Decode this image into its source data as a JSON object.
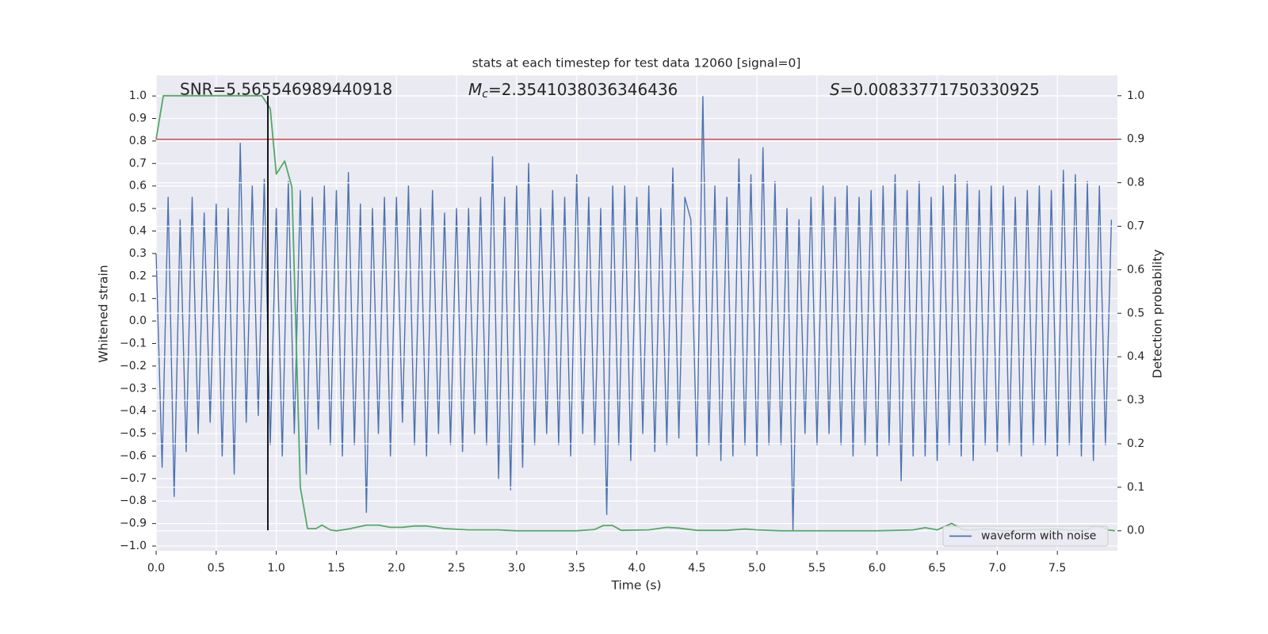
{
  "chart_data": {
    "type": "line",
    "title": "stats at each timestep for test data 12060 [signal=0]",
    "xlabel": "Time (s)",
    "ylabel": "Whitened strain",
    "y2label": "Detection probability",
    "annotations": {
      "snr": "SNR=5.565546989440918",
      "mc_symbol": "M",
      "mc_subscript": "c",
      "mc_value": "=2.3541038036346436",
      "s_symbol": "S",
      "s_value": "=0.00833771750330925"
    },
    "xlim": [
      0,
      8.0
    ],
    "ylim": [
      -1.021,
      1.092
    ],
    "y2lim": [
      -0.046,
      1.047
    ],
    "grid": true,
    "background": "#eaeaf2",
    "legend": "lower right",
    "xticks": [
      {
        "value": 0,
        "label": "0.0"
      },
      {
        "value": 0.5,
        "label": "0.5"
      },
      {
        "value": 1,
        "label": "1.0"
      },
      {
        "value": 1.5,
        "label": "1.5"
      },
      {
        "value": 2,
        "label": "2.0"
      },
      {
        "value": 2.5,
        "label": "2.5"
      },
      {
        "value": 3,
        "label": "3.0"
      },
      {
        "value": 3.5,
        "label": "3.5"
      },
      {
        "value": 4,
        "label": "4.0"
      },
      {
        "value": 4.5,
        "label": "4.5"
      },
      {
        "value": 5,
        "label": "5.0"
      },
      {
        "value": 5.5,
        "label": "5.5"
      },
      {
        "value": 6,
        "label": "6.0"
      },
      {
        "value": 6.5,
        "label": "6.5"
      },
      {
        "value": 7,
        "label": "7.0"
      },
      {
        "value": 7.5,
        "label": "7.5"
      }
    ],
    "yticks": [
      {
        "value": 1,
        "label": "1.0"
      },
      {
        "value": 0.9,
        "label": "0.9"
      },
      {
        "value": 0.8,
        "label": "0.8"
      },
      {
        "value": 0.7,
        "label": "0.7"
      },
      {
        "value": 0.6,
        "label": "0.6"
      },
      {
        "value": 0.5,
        "label": "0.5"
      },
      {
        "value": 0.4,
        "label": "0.4"
      },
      {
        "value": 0.3,
        "label": "0.3"
      },
      {
        "value": 0.2,
        "label": "0.2"
      },
      {
        "value": 0.1,
        "label": "0.1"
      },
      {
        "value": 0,
        "label": "0.0"
      },
      {
        "value": -0.1,
        "label": "−0.1"
      },
      {
        "value": -0.2,
        "label": "−0.2"
      },
      {
        "value": -0.3,
        "label": "−0.3"
      },
      {
        "value": -0.4,
        "label": "−0.4"
      },
      {
        "value": -0.5,
        "label": "−0.5"
      },
      {
        "value": -0.6,
        "label": "−0.6"
      },
      {
        "value": -0.7,
        "label": "−0.7"
      },
      {
        "value": -0.8,
        "label": "−0.8"
      },
      {
        "value": -0.9,
        "label": "−0.9"
      },
      {
        "value": -1,
        "label": "−1.0"
      }
    ],
    "y2ticks": [
      {
        "value": 0,
        "label": "0.0"
      },
      {
        "value": 0.1,
        "label": "0.1"
      },
      {
        "value": 0.2,
        "label": "0.2"
      },
      {
        "value": 0.3,
        "label": "0.3"
      },
      {
        "value": 0.4,
        "label": "0.4"
      },
      {
        "value": 0.5,
        "label": "0.5"
      },
      {
        "value": 0.6,
        "label": "0.6"
      },
      {
        "value": 0.7,
        "label": "0.7"
      },
      {
        "value": 0.8,
        "label": "0.8"
      },
      {
        "value": 0.9,
        "label": "0.9"
      },
      {
        "value": 1,
        "label": "1.0"
      }
    ],
    "threshold": {
      "y2": 0.9,
      "color": "#c44e52"
    },
    "vline": {
      "x": 0.93,
      "y_bottom": -0.93,
      "y2_top": 1.0,
      "color": "#000000"
    },
    "series": [
      {
        "name": "waveform with noise",
        "color": "#4c72b0",
        "x": [
          0,
          0.05,
          0.1,
          0.15,
          0.2,
          0.25,
          0.3,
          0.35,
          0.4,
          0.45,
          0.5,
          0.55,
          0.6,
          0.65,
          0.7,
          0.75,
          0.8,
          0.85,
          0.9,
          0.95,
          1,
          1.05,
          1.1,
          1.15,
          1.2,
          1.25,
          1.3,
          1.35,
          1.4,
          1.45,
          1.5,
          1.55,
          1.6,
          1.65,
          1.7,
          1.75,
          1.8,
          1.85,
          1.9,
          1.95,
          2,
          2.05,
          2.1,
          2.15,
          2.2,
          2.25,
          2.3,
          2.35,
          2.4,
          2.45,
          2.5,
          2.55,
          2.6,
          2.65,
          2.7,
          2.75,
          2.8,
          2.85,
          2.9,
          2.95,
          3,
          3.05,
          3.1,
          3.15,
          3.2,
          3.25,
          3.3,
          3.35,
          3.4,
          3.45,
          3.5,
          3.55,
          3.6,
          3.65,
          3.7,
          3.75,
          3.8,
          3.85,
          3.9,
          3.95,
          4,
          4.05,
          4.1,
          4.15,
          4.2,
          4.25,
          4.3,
          4.35,
          4.4,
          4.45,
          4.5,
          4.55,
          4.6,
          4.65,
          4.7,
          4.75,
          4.8,
          4.85,
          4.9,
          4.95,
          5,
          5.05,
          5.1,
          5.15,
          5.2,
          5.25,
          5.3,
          5.35,
          5.4,
          5.45,
          5.5,
          5.55,
          5.6,
          5.65,
          5.7,
          5.75,
          5.8,
          5.85,
          5.9,
          5.95,
          6,
          6.05,
          6.1,
          6.15,
          6.2,
          6.25,
          6.3,
          6.35,
          6.4,
          6.45,
          6.5,
          6.55,
          6.6,
          6.65,
          6.7,
          6.75,
          6.8,
          6.85,
          6.9,
          6.95,
          7,
          7.05,
          7.1,
          7.15,
          7.2,
          7.25,
          7.3,
          7.35,
          7.4,
          7.45,
          7.5,
          7.55,
          7.6,
          7.65,
          7.7,
          7.75,
          7.8,
          7.85,
          7.9,
          7.95
        ],
        "values": [
          0.3,
          -0.65,
          0.55,
          -0.78,
          0.45,
          -0.58,
          0.55,
          -0.5,
          0.48,
          -0.45,
          0.52,
          -0.6,
          0.5,
          -0.68,
          0.79,
          -0.45,
          0.6,
          -0.42,
          0.63,
          -0.55,
          0.5,
          -0.6,
          0.62,
          -0.5,
          0.58,
          -0.68,
          0.55,
          -0.48,
          0.6,
          -0.55,
          0.58,
          -0.6,
          0.66,
          -0.55,
          0.52,
          -0.85,
          0.5,
          -0.5,
          0.55,
          -0.6,
          0.55,
          -0.45,
          0.6,
          -0.55,
          0.5,
          -0.6,
          0.58,
          -0.5,
          0.48,
          -0.55,
          0.5,
          -0.58,
          0.5,
          -0.5,
          0.55,
          -0.55,
          0.73,
          -0.7,
          0.55,
          -0.75,
          0.6,
          -0.65,
          0.7,
          -0.55,
          0.5,
          -0.5,
          0.58,
          -0.55,
          0.55,
          -0.6,
          0.65,
          -0.5,
          0.55,
          -0.55,
          0.5,
          -0.86,
          0.6,
          -0.55,
          0.6,
          -0.62,
          0.55,
          -0.5,
          0.6,
          -0.58,
          0.5,
          -0.55,
          0.68,
          -0.52,
          0.55,
          0.45,
          -0.6,
          1.0,
          -0.55,
          0.6,
          -0.62,
          0.55,
          -0.6,
          0.72,
          -0.55,
          0.65,
          -0.6,
          0.77,
          -0.55,
          0.62,
          -0.55,
          0.5,
          -0.93,
          0.45,
          -0.5,
          0.55,
          -0.55,
          0.6,
          -0.5,
          0.55,
          -0.55,
          0.6,
          -0.6,
          0.55,
          -0.55,
          0.58,
          -0.6,
          0.6,
          -0.55,
          0.65,
          -0.71,
          0.58,
          -0.6,
          0.62,
          -0.6,
          0.55,
          -0.62,
          0.6,
          -0.55,
          0.65,
          -0.6,
          0.62,
          -0.62,
          0.58,
          -0.55,
          0.6,
          -0.58,
          0.6,
          -0.55,
          0.55,
          -0.6,
          0.58,
          -0.55,
          0.6,
          -0.55,
          0.58,
          -0.6,
          0.67,
          -0.55,
          0.65,
          -0.6,
          0.62,
          -0.62,
          0.6,
          -0.55,
          0.45
        ]
      },
      {
        "axis": "y2",
        "color": "#55a868",
        "x": [
          0,
          0.06,
          0.2,
          0.4,
          0.6,
          0.8,
          0.88,
          0.95,
          1.0,
          1.07,
          1.13,
          1.2,
          1.26,
          1.33,
          1.38,
          1.45,
          1.5,
          1.6,
          1.75,
          1.85,
          1.95,
          2.05,
          2.15,
          2.25,
          2.4,
          2.6,
          2.85,
          3.0,
          3.5,
          3.65,
          3.72,
          3.8,
          3.87,
          4.1,
          4.25,
          4.35,
          4.5,
          4.75,
          4.9,
          5.0,
          5.2,
          6.0,
          6.3,
          6.4,
          6.5,
          6.62,
          6.72,
          6.82,
          6.9,
          7.05,
          7.5,
          7.6,
          7.75,
          7.8,
          7.87,
          7.92,
          7.98
        ],
        "values": [
          0.9,
          1.0,
          1.0,
          1.0,
          1.0,
          1.0,
          1.0,
          0.97,
          0.82,
          0.85,
          0.79,
          0.1,
          0.005,
          0.005,
          0.013,
          0.002,
          0.0,
          0.004,
          0.013,
          0.013,
          0.008,
          0.008,
          0.011,
          0.011,
          0.005,
          0.002,
          0.002,
          0.0,
          0.0,
          0.003,
          0.012,
          0.012,
          0.001,
          0.002,
          0.008,
          0.006,
          0.001,
          0.001,
          0.004,
          0.002,
          0.0,
          0.0,
          0.002,
          0.007,
          0.002,
          0.017,
          0.002,
          0.002,
          0.005,
          0.0,
          0.004,
          0.001,
          0.002,
          0.01,
          0.009,
          0.002,
          0.0
        ]
      }
    ]
  }
}
